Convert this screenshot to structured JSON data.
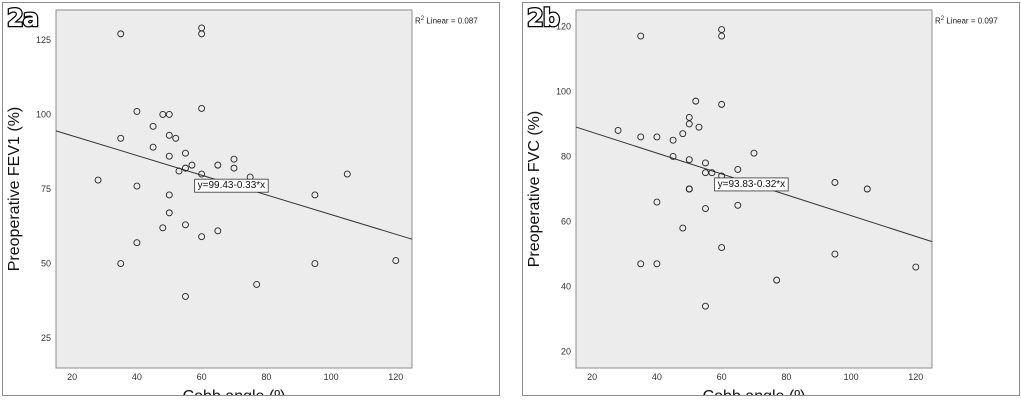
{
  "chart_data": [
    {
      "type": "scatter",
      "panel_label": "2a",
      "r2_label": "Linear = 0.087",
      "xlabel": "Cobb angle (º)",
      "ylabel": "Preoperative FEV1 (%)",
      "xlim": [
        15,
        125
      ],
      "ylim": [
        15,
        135
      ],
      "xticks": [
        20,
        40,
        60,
        80,
        100,
        120
      ],
      "yticks": [
        25,
        50,
        75,
        100,
        125
      ],
      "grid": false,
      "points": [
        {
          "x": 28,
          "y": 78
        },
        {
          "x": 35,
          "y": 127
        },
        {
          "x": 35,
          "y": 92
        },
        {
          "x": 35,
          "y": 50
        },
        {
          "x": 40,
          "y": 101
        },
        {
          "x": 40,
          "y": 76
        },
        {
          "x": 40,
          "y": 57
        },
        {
          "x": 45,
          "y": 96
        },
        {
          "x": 45,
          "y": 89
        },
        {
          "x": 48,
          "y": 100
        },
        {
          "x": 48,
          "y": 62
        },
        {
          "x": 50,
          "y": 100
        },
        {
          "x": 50,
          "y": 93
        },
        {
          "x": 50,
          "y": 86
        },
        {
          "x": 50,
          "y": 73
        },
        {
          "x": 50,
          "y": 67
        },
        {
          "x": 52,
          "y": 92
        },
        {
          "x": 53,
          "y": 81
        },
        {
          "x": 55,
          "y": 87
        },
        {
          "x": 55,
          "y": 82
        },
        {
          "x": 55,
          "y": 63
        },
        {
          "x": 55,
          "y": 39
        },
        {
          "x": 57,
          "y": 83
        },
        {
          "x": 60,
          "y": 129
        },
        {
          "x": 60,
          "y": 127
        },
        {
          "x": 60,
          "y": 102
        },
        {
          "x": 60,
          "y": 80
        },
        {
          "x": 60,
          "y": 59
        },
        {
          "x": 65,
          "y": 83
        },
        {
          "x": 65,
          "y": 61
        },
        {
          "x": 70,
          "y": 85
        },
        {
          "x": 70,
          "y": 82
        },
        {
          "x": 75,
          "y": 79
        },
        {
          "x": 77,
          "y": 43
        },
        {
          "x": 95,
          "y": 73
        },
        {
          "x": 95,
          "y": 50
        },
        {
          "x": 105,
          "y": 80
        },
        {
          "x": 120,
          "y": 51
        }
      ],
      "fit": {
        "intercept": 99.43,
        "slope": -0.33,
        "label": "y=99.43-0.33*x"
      }
    },
    {
      "type": "scatter",
      "panel_label": "2b",
      "r2_label": "Linear = 0.097",
      "xlabel": "Cobb angle (º)",
      "ylabel": "Preoperative FVC (%)",
      "xlim": [
        15,
        125
      ],
      "ylim": [
        15,
        125
      ],
      "xticks": [
        20,
        40,
        60,
        80,
        100,
        120
      ],
      "yticks": [
        20,
        40,
        60,
        80,
        100,
        120
      ],
      "grid": false,
      "points": [
        {
          "x": 28,
          "y": 88
        },
        {
          "x": 35,
          "y": 117
        },
        {
          "x": 35,
          "y": 86
        },
        {
          "x": 35,
          "y": 47
        },
        {
          "x": 40,
          "y": 86
        },
        {
          "x": 40,
          "y": 66
        },
        {
          "x": 40,
          "y": 47
        },
        {
          "x": 45,
          "y": 85
        },
        {
          "x": 45,
          "y": 80
        },
        {
          "x": 48,
          "y": 87
        },
        {
          "x": 48,
          "y": 58
        },
        {
          "x": 50,
          "y": 92
        },
        {
          "x": 50,
          "y": 90
        },
        {
          "x": 50,
          "y": 79
        },
        {
          "x": 50,
          "y": 70
        },
        {
          "x": 50,
          "y": 70
        },
        {
          "x": 52,
          "y": 97
        },
        {
          "x": 53,
          "y": 89
        },
        {
          "x": 55,
          "y": 78
        },
        {
          "x": 55,
          "y": 75
        },
        {
          "x": 55,
          "y": 64
        },
        {
          "x": 55,
          "y": 34
        },
        {
          "x": 57,
          "y": 75
        },
        {
          "x": 60,
          "y": 119
        },
        {
          "x": 60,
          "y": 117
        },
        {
          "x": 60,
          "y": 96
        },
        {
          "x": 60,
          "y": 74
        },
        {
          "x": 60,
          "y": 52
        },
        {
          "x": 65,
          "y": 76
        },
        {
          "x": 65,
          "y": 65
        },
        {
          "x": 70,
          "y": 81
        },
        {
          "x": 77,
          "y": 42
        },
        {
          "x": 95,
          "y": 72
        },
        {
          "x": 95,
          "y": 50
        },
        {
          "x": 105,
          "y": 70
        },
        {
          "x": 120,
          "y": 46
        }
      ],
      "fit": {
        "intercept": 93.83,
        "slope": -0.32,
        "label": "y=93.83-0.32*x"
      }
    }
  ],
  "colors": {
    "plot_bg": "#ececec",
    "point": "#222222",
    "fit_line": "#333333",
    "frame": "#8c8c8c"
  }
}
